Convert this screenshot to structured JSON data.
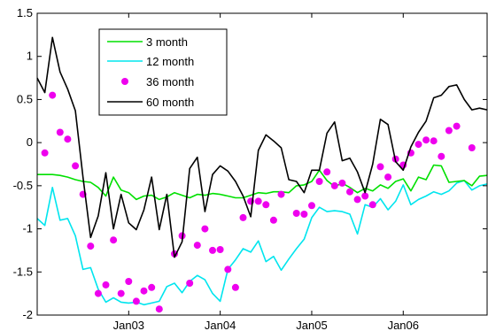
{
  "chart_data": {
    "type": "line",
    "x_start": "2002-01",
    "x_step_months": 1,
    "xlim": [
      "2002-01",
      "2006-12"
    ],
    "ylim": [
      -2,
      1.5
    ],
    "yticks": [
      -2,
      -1.5,
      -1,
      -0.5,
      0,
      0.5,
      1,
      1.5
    ],
    "ytick_labels": [
      "-2",
      "-1.5",
      "-1",
      "-0.5",
      "0",
      "0.5",
      "1",
      "1.5"
    ],
    "xticks": [
      "2003-01",
      "2004-01",
      "2005-01",
      "2006-01"
    ],
    "xtick_labels": [
      "Jan03",
      "Jan04",
      "Jan05",
      "Jan06"
    ],
    "grid": false,
    "legend_position": "top-left",
    "series": [
      {
        "name": "3 month",
        "style": "line",
        "color": "#00e000",
        "values": [
          -0.37,
          -0.37,
          -0.37,
          -0.38,
          -0.4,
          -0.43,
          -0.45,
          -0.46,
          -0.52,
          -0.62,
          -0.4,
          -0.55,
          -0.58,
          -0.66,
          -0.62,
          -0.61,
          -0.66,
          -0.63,
          -0.58,
          -0.61,
          -0.64,
          -0.6,
          -0.61,
          -0.59,
          -0.6,
          -0.62,
          -0.64,
          -0.64,
          -0.61,
          -0.58,
          -0.59,
          -0.57,
          -0.57,
          -0.58,
          -0.5,
          -0.49,
          -0.45,
          -0.32,
          -0.44,
          -0.51,
          -0.47,
          -0.52,
          -0.58,
          -0.53,
          -0.56,
          -0.49,
          -0.53,
          -0.45,
          -0.42,
          -0.56,
          -0.4,
          -0.43,
          -0.26,
          -0.27,
          -0.46,
          -0.45,
          -0.44,
          -0.5,
          -0.39,
          -0.38
        ]
      },
      {
        "name": "12 month",
        "style": "line",
        "color": "#00e5ee",
        "values": [
          -0.88,
          -0.96,
          -0.52,
          -0.9,
          -0.88,
          -1.08,
          -1.47,
          -1.45,
          -1.7,
          -1.85,
          -1.8,
          -1.85,
          -1.86,
          -1.85,
          -1.88,
          -1.86,
          -1.84,
          -1.67,
          -1.63,
          -1.74,
          -1.61,
          -1.54,
          -1.59,
          -1.75,
          -1.84,
          -1.47,
          -1.36,
          -1.23,
          -1.27,
          -1.14,
          -1.38,
          -1.32,
          -1.48,
          -1.35,
          -1.23,
          -1.12,
          -0.87,
          -0.75,
          -0.8,
          -0.79,
          -0.8,
          -0.83,
          -1.06,
          -0.72,
          -0.75,
          -0.65,
          -0.78,
          -0.68,
          -0.49,
          -0.72,
          -0.66,
          -0.62,
          -0.57,
          -0.6,
          -0.56,
          -0.47,
          -0.44,
          -0.55,
          -0.5,
          -0.48
        ]
      },
      {
        "name": "36 month",
        "style": "markers",
        "color": "#ee00ee",
        "values": [
          null,
          -0.12,
          0.55,
          0.12,
          0.04,
          -0.27,
          -0.6,
          -1.2,
          -1.75,
          -1.65,
          -1.13,
          -1.75,
          -1.61,
          -1.84,
          -1.72,
          -1.68,
          -1.93,
          null,
          -1.29,
          -1.08,
          -1.63,
          -1.19,
          -1.0,
          -1.25,
          -1.24,
          -1.47,
          -1.68,
          -0.87,
          -0.68,
          -0.68,
          -0.72,
          -0.9,
          -0.6,
          null,
          -0.82,
          -0.83,
          -0.73,
          -0.45,
          -0.34,
          -0.5,
          -0.47,
          -0.57,
          -0.66,
          -0.62,
          -0.72,
          -0.28,
          -0.4,
          -0.19,
          -0.26,
          -0.12,
          -0.02,
          0.03,
          0.02,
          -0.16,
          0.14,
          0.19,
          null,
          -0.06,
          null,
          null
        ]
      },
      {
        "name": "60 month",
        "style": "line",
        "color": "#000000",
        "values": [
          0.75,
          0.58,
          1.22,
          0.82,
          0.62,
          0.37,
          -0.4,
          -1.1,
          -0.85,
          -0.35,
          -1.0,
          -0.6,
          -0.93,
          -1.01,
          -0.78,
          -0.4,
          -1.01,
          -0.6,
          -1.33,
          -1.15,
          -0.3,
          -0.17,
          -0.8,
          -0.37,
          -0.27,
          -0.33,
          -0.45,
          -0.62,
          -0.86,
          -0.09,
          0.09,
          0.02,
          -0.06,
          -0.43,
          -0.45,
          -0.58,
          -0.32,
          -0.32,
          0.11,
          0.24,
          -0.21,
          -0.18,
          -0.34,
          -0.58,
          -0.25,
          0.27,
          0.21,
          -0.22,
          -0.32,
          -0.05,
          0.12,
          0.25,
          0.52,
          0.55,
          0.65,
          0.67,
          0.5,
          0.38,
          0.4,
          0.38
        ]
      }
    ]
  }
}
